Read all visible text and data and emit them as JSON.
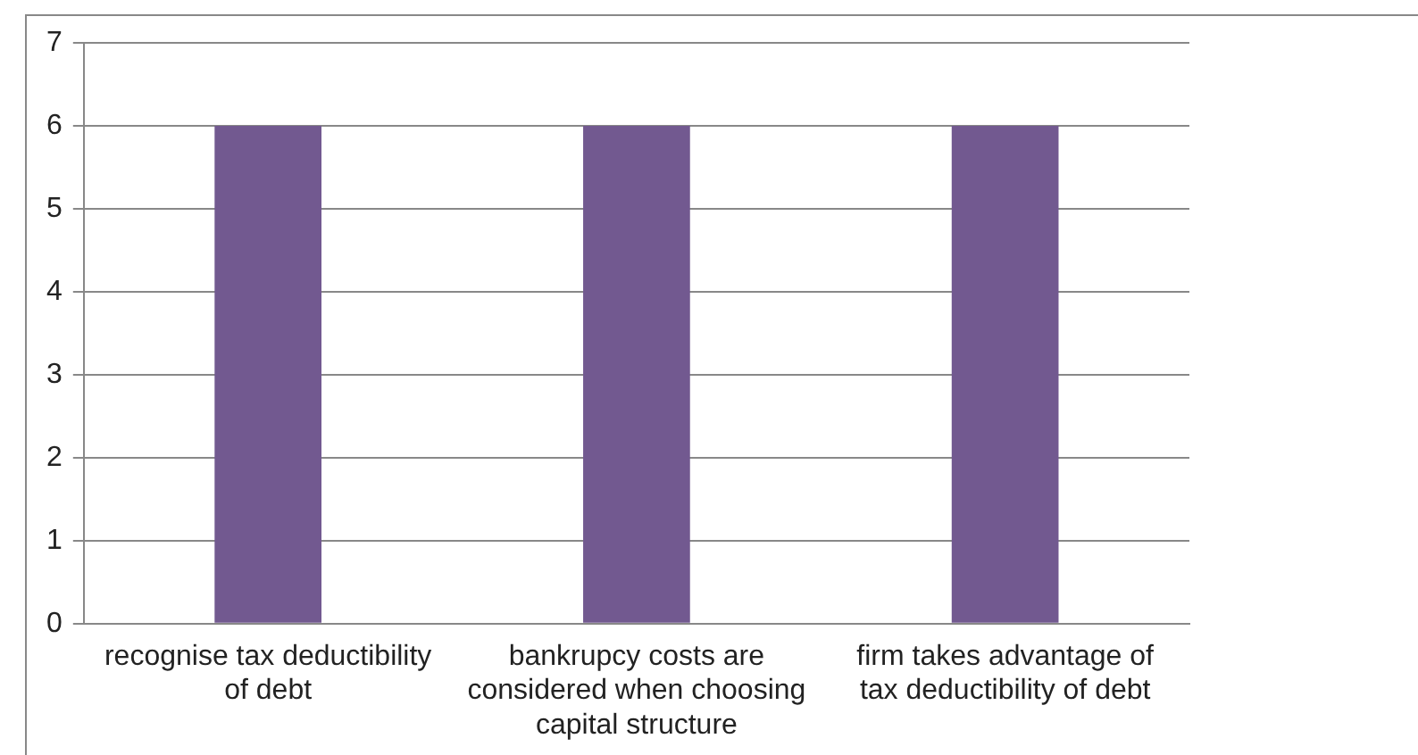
{
  "chart_data": {
    "type": "bar",
    "categories": [
      "recognise tax deductibility of debt",
      "bankrupcy costs are considered when choosing capital structure",
      "firm takes advantage of tax deductibility of debt"
    ],
    "values": [
      6,
      6,
      6
    ],
    "color": "#725990",
    "ylim": [
      0,
      7
    ],
    "yticks": [
      0,
      1,
      2,
      3,
      4,
      5,
      6,
      7
    ],
    "grid": "y",
    "legend": false
  }
}
